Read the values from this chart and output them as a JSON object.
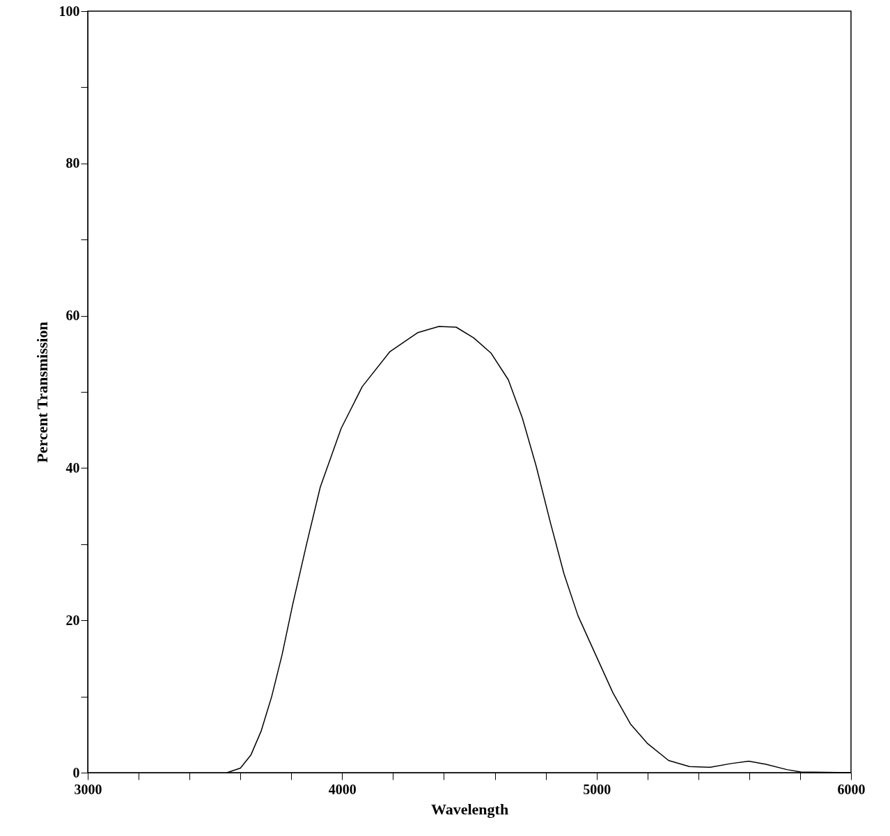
{
  "chart_data": {
    "type": "line",
    "xlabel": "Wavelength",
    "ylabel": "Percent Transmission",
    "x": [
      3547,
      3600,
      3641,
      3682,
      3723,
      3764,
      3805,
      3860,
      3914,
      3996,
      4079,
      4188,
      4298,
      4380,
      4448,
      4517,
      4585,
      4653,
      4708,
      4763,
      4818,
      4872,
      4927,
      4996,
      5064,
      5133,
      5201,
      5283,
      5365,
      5447,
      5529,
      5598,
      5666,
      5748,
      5803,
      6000
    ],
    "series": [
      {
        "color": "#000000",
        "values": [
          0,
          0.6,
          2.3,
          5.5,
          10,
          15.5,
          22,
          30,
          37.5,
          45.2,
          50.7,
          55.3,
          57.8,
          58.6,
          58.5,
          57.1,
          55.1,
          51.6,
          46.6,
          40.2,
          32.9,
          26.1,
          20.6,
          15.5,
          10.5,
          6.4,
          3.8,
          1.6,
          0.8,
          0.7,
          1.2,
          1.5,
          1.1,
          0.4,
          0.1,
          0
        ]
      }
    ],
    "xlim": [
      3000,
      6000
    ],
    "ylim": [
      0,
      100
    ],
    "xticks": [
      3000,
      {
        "value": 3200,
        "label": null
      },
      {
        "value": 3400,
        "label": null
      },
      {
        "value": 3600,
        "label": null
      },
      {
        "value": 3800,
        "label": null
      },
      4000,
      {
        "value": 4200,
        "label": null
      },
      {
        "value": 4400,
        "label": null
      },
      {
        "value": 4600,
        "label": null
      },
      {
        "value": 4800,
        "label": null
      },
      5000,
      {
        "value": 5200,
        "label": null
      },
      {
        "value": 5400,
        "label": null
      },
      {
        "value": 5600,
        "label": null
      },
      {
        "value": 5800,
        "label": null
      },
      6000
    ],
    "yticks": [
      0,
      {
        "value": 10,
        "label": null
      },
      20,
      {
        "value": 30,
        "label": null
      },
      40,
      {
        "value": 50,
        "label": null
      },
      60,
      {
        "value": 70,
        "label": null
      },
      80,
      {
        "value": 90,
        "label": null
      },
      100
    ],
    "grid": false,
    "marker": "none",
    "line_style": "solid"
  }
}
